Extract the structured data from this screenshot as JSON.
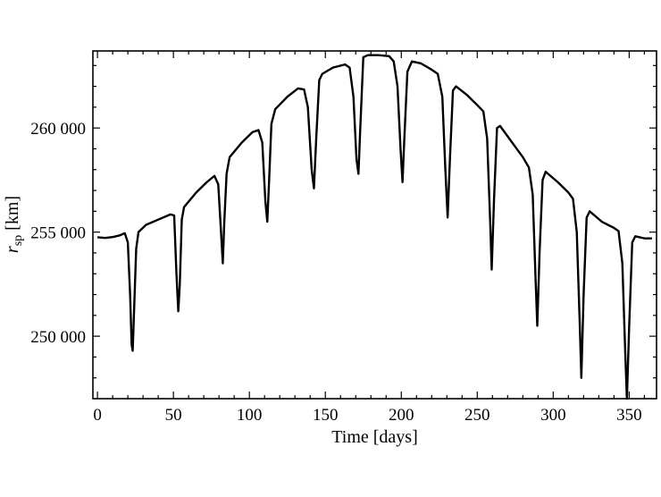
{
  "chart_data": {
    "type": "line",
    "xlabel": "Time [days]",
    "ylabel_main": "r",
    "ylabel_sub": "sp",
    "ylabel_unit": " [km]",
    "xlim": [
      -3,
      368
    ],
    "ylim": [
      247000,
      263700
    ],
    "xticks": [
      0,
      50,
      100,
      150,
      200,
      250,
      300,
      350
    ],
    "xtick_labels": [
      "0",
      "50",
      "100",
      "150",
      "200",
      "250",
      "300",
      "350"
    ],
    "yticks": [
      250000,
      255000,
      260000
    ],
    "ytick_labels": [
      "250 000",
      "255 000",
      "260 000"
    ],
    "grid": false,
    "series": [
      {
        "color": "#000000",
        "points": [
          [
            0,
            254750
          ],
          [
            5,
            254720
          ],
          [
            10,
            254760
          ],
          [
            15,
            254850
          ],
          [
            18,
            254950
          ],
          [
            20,
            254500
          ],
          [
            21.5,
            252000
          ],
          [
            22.5,
            249600
          ],
          [
            23.2,
            249300
          ],
          [
            24,
            251000
          ],
          [
            25.5,
            254200
          ],
          [
            27,
            255000
          ],
          [
            32,
            255350
          ],
          [
            40,
            255600
          ],
          [
            48,
            255850
          ],
          [
            50.5,
            255800
          ],
          [
            52,
            253000
          ],
          [
            53.2,
            251200
          ],
          [
            54.2,
            252500
          ],
          [
            55.5,
            255600
          ],
          [
            57,
            256200
          ],
          [
            65,
            256900
          ],
          [
            72,
            257400
          ],
          [
            77,
            257700
          ],
          [
            79.5,
            257300
          ],
          [
            81.5,
            254800
          ],
          [
            82.5,
            253500
          ],
          [
            83.5,
            255500
          ],
          [
            85,
            257800
          ],
          [
            87,
            258600
          ],
          [
            95,
            259300
          ],
          [
            102,
            259800
          ],
          [
            106,
            259900
          ],
          [
            108.5,
            259300
          ],
          [
            110.5,
            256500
          ],
          [
            111.8,
            255500
          ],
          [
            113,
            257500
          ],
          [
            114.5,
            260200
          ],
          [
            117,
            260900
          ],
          [
            125,
            261500
          ],
          [
            132,
            261900
          ],
          [
            136,
            261850
          ],
          [
            138.5,
            261000
          ],
          [
            141,
            258000
          ],
          [
            142.5,
            257100
          ],
          [
            144,
            259500
          ],
          [
            146,
            262300
          ],
          [
            148,
            262600
          ],
          [
            155,
            262900
          ],
          [
            163,
            263050
          ],
          [
            166,
            262900
          ],
          [
            168.5,
            261500
          ],
          [
            170.5,
            258500
          ],
          [
            171.8,
            257800
          ],
          [
            173,
            260000
          ],
          [
            175,
            263400
          ],
          [
            178,
            263500
          ],
          [
            185,
            263500
          ],
          [
            192,
            263450
          ],
          [
            195,
            263200
          ],
          [
            197.5,
            262000
          ],
          [
            199.5,
            259000
          ],
          [
            200.8,
            257400
          ],
          [
            202,
            259500
          ],
          [
            204,
            262700
          ],
          [
            207,
            263200
          ],
          [
            213,
            263100
          ],
          [
            220,
            262800
          ],
          [
            224,
            262600
          ],
          [
            227,
            261500
          ],
          [
            229,
            258000
          ],
          [
            230.5,
            255700
          ],
          [
            232,
            258500
          ],
          [
            234,
            261800
          ],
          [
            236,
            262000
          ],
          [
            243,
            261600
          ],
          [
            250,
            261100
          ],
          [
            254,
            260800
          ],
          [
            256.5,
            259500
          ],
          [
            258.5,
            255500
          ],
          [
            259.5,
            253200
          ],
          [
            261,
            256500
          ],
          [
            263,
            260000
          ],
          [
            265,
            260100
          ],
          [
            272,
            259400
          ],
          [
            280,
            258600
          ],
          [
            284,
            258100
          ],
          [
            286.5,
            256800
          ],
          [
            288.5,
            252500
          ],
          [
            289.5,
            250500
          ],
          [
            291,
            254000
          ],
          [
            293,
            257500
          ],
          [
            295,
            257900
          ],
          [
            303,
            257400
          ],
          [
            310,
            256900
          ],
          [
            313,
            256600
          ],
          [
            315.5,
            255000
          ],
          [
            317.5,
            250500
          ],
          [
            318.5,
            248000
          ],
          [
            320,
            252000
          ],
          [
            322,
            255700
          ],
          [
            324,
            256000
          ],
          [
            332,
            255500
          ],
          [
            340,
            255200
          ],
          [
            343,
            255050
          ],
          [
            345.5,
            253500
          ],
          [
            347.5,
            249000
          ],
          [
            348.5,
            247000
          ],
          [
            350,
            250500
          ],
          [
            352,
            254500
          ],
          [
            354,
            254800
          ],
          [
            360,
            254700
          ],
          [
            365,
            254700
          ]
        ]
      }
    ]
  }
}
